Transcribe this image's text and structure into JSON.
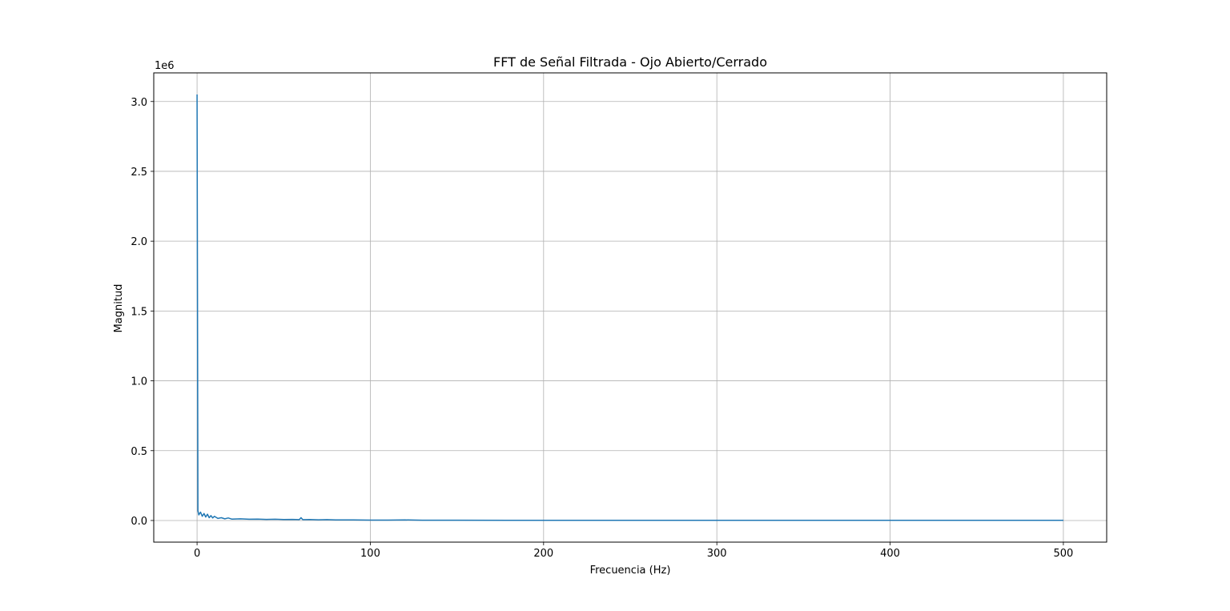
{
  "chart_data": {
    "type": "line",
    "title": "FFT de Señal Filtrada - Ojo Abierto/Cerrado",
    "xlabel": "Frecuencia (Hz)",
    "ylabel": "Magnitud",
    "y_offset_label": "1e6",
    "xlim": [
      -25,
      525
    ],
    "ylim": [
      -0.155,
      3.205
    ],
    "x_ticks": [
      0,
      100,
      200,
      300,
      400,
      500
    ],
    "x_tick_labels": [
      "0",
      "100",
      "200",
      "300",
      "400",
      "500"
    ],
    "y_ticks": [
      0.0,
      0.5,
      1.0,
      1.5,
      2.0,
      2.5,
      3.0
    ],
    "y_tick_labels": [
      "0.0",
      "0.5",
      "1.0",
      "1.5",
      "2.0",
      "2.5",
      "3.0"
    ],
    "grid": true,
    "line_color": "#1f77b4",
    "series": [
      {
        "x": [
          0,
          0.5,
          1,
          2,
          3,
          4,
          5,
          6,
          7,
          8,
          9,
          10,
          12,
          14,
          16,
          18,
          20,
          25,
          30,
          35,
          40,
          45,
          50,
          55,
          59,
          60,
          61,
          65,
          70,
          75,
          80,
          90,
          100,
          110,
          120,
          130,
          150,
          200,
          250,
          300,
          350,
          400,
          450,
          500
        ],
        "y": [
          3.05,
          0.07,
          0.04,
          0.06,
          0.03,
          0.05,
          0.025,
          0.045,
          0.02,
          0.035,
          0.018,
          0.03,
          0.015,
          0.02,
          0.012,
          0.018,
          0.01,
          0.012,
          0.009,
          0.01,
          0.008,
          0.009,
          0.007,
          0.008,
          0.006,
          0.02,
          0.006,
          0.007,
          0.005,
          0.006,
          0.004,
          0.004,
          0.003,
          0.003,
          0.004,
          0.002,
          0.002,
          0.001,
          0.001,
          0.001,
          0.001,
          0.001,
          0.001,
          0.001
        ]
      }
    ]
  }
}
